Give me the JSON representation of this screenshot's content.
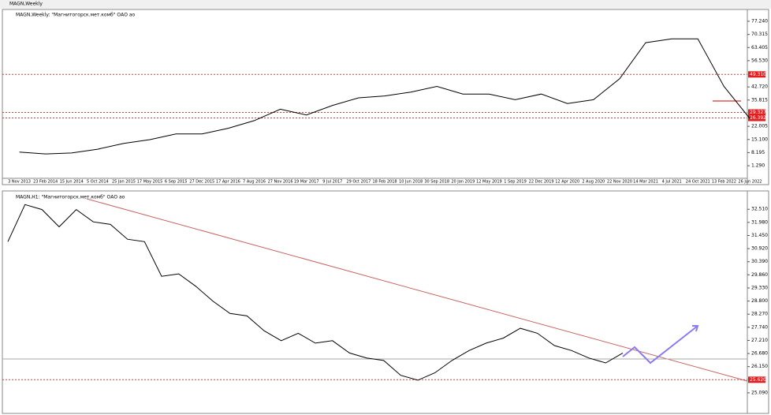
{
  "window": {
    "title": "MAGN,Weekly"
  },
  "chart_data": [
    {
      "type": "line",
      "title": "MAGN,Weekly: \"Магнитогорск.мет.комб\" ОАО ао",
      "color": "#000000",
      "categories": [
        "3 Nov 2013",
        "23 Feb 2014",
        "15 Jun 2014",
        "5 Oct 2014",
        "25 Jan 2015",
        "17 May 2015",
        "6 Sep 2015",
        "27 Dec 2015",
        "17 Apr 2016",
        "7 Aug 2016",
        "27 Nov 2016",
        "19 Mar 2017",
        "9 Jul 2017",
        "29 Oct 2017",
        "18 Feb 2018",
        "10 Jun 2018",
        "30 Sep 2018",
        "20 Jan 2019",
        "12 May 2019",
        "1 Sep 2019",
        "22 Dec 2019",
        "12 Apr 2020",
        "2 Aug 2020",
        "22 Nov 2020",
        "14 Mar 2021",
        "4 Jul 2021",
        "24 Oct 2021",
        "13 Feb 2022",
        "26 Jun 2022"
      ],
      "values": [
        8.5,
        7.5,
        8.0,
        10,
        13,
        15,
        18,
        18,
        21,
        25,
        31,
        28,
        33,
        37,
        38,
        40,
        43,
        39,
        39,
        36,
        39,
        34,
        36,
        47,
        66,
        68,
        68,
        43,
        26
      ],
      "ylim": [
        -4.9,
        82.2
      ],
      "yticks": [
        {
          "value": 77.24,
          "label": "77.240"
        },
        {
          "value": 70.315,
          "label": "70.315"
        },
        {
          "value": 63.405,
          "label": "63.405"
        },
        {
          "value": 56.53,
          "label": "56.530"
        },
        {
          "value": 42.72,
          "label": "42.720"
        },
        {
          "value": 35.815,
          "label": "35.815"
        },
        {
          "value": 22.005,
          "label": "22.005"
        },
        {
          "value": 15.1,
          "label": "15.100"
        },
        {
          "value": 8.195,
          "label": "8.195"
        },
        {
          "value": 1.29,
          "label": "1.290"
        }
      ],
      "levels": [
        {
          "value": 49.31,
          "label": "49.310"
        },
        {
          "value": 29.327,
          "label": "29.327"
        },
        {
          "value": 26.392,
          "label": "26.392"
        }
      ]
    },
    {
      "type": "line",
      "title": "MAGN,H1: \"Магнитогорск.мет.комб\" ОАО ао",
      "color": "#000000",
      "values": [
        31.2,
        32.7,
        32.5,
        31.8,
        32.5,
        32,
        31.9,
        31.3,
        31.2,
        29.8,
        29.9,
        29.4,
        28.8,
        28.3,
        28.2,
        27.6,
        27.2,
        27.5,
        27.1,
        27.2,
        26.7,
        26.5,
        26.4,
        25.8,
        25.6,
        25.9,
        26.4,
        26.8,
        27.1,
        27.3,
        27.7,
        27.5,
        27.0,
        26.8,
        26.5,
        26.3,
        26.7
      ],
      "ylim": [
        24.45,
        33.06
      ],
      "yticks": [
        {
          "value": 32.51,
          "label": "32.510"
        },
        {
          "value": 31.98,
          "label": "31.980"
        },
        {
          "value": 31.45,
          "label": "31.450"
        },
        {
          "value": 30.92,
          "label": "30.920"
        },
        {
          "value": 30.39,
          "label": "30.390"
        },
        {
          "value": 29.86,
          "label": "29.860"
        },
        {
          "value": 29.33,
          "label": "29.330"
        },
        {
          "value": 28.8,
          "label": "28.800"
        },
        {
          "value": 28.27,
          "label": "28.270"
        },
        {
          "value": 27.74,
          "label": "27.740"
        },
        {
          "value": 27.21,
          "label": "27.210"
        },
        {
          "value": 26.68,
          "label": "26.680"
        },
        {
          "value": 26.15,
          "label": "26.150"
        },
        {
          "value": 25.09,
          "label": "25.090"
        }
      ],
      "levels": [
        {
          "value": 25.62,
          "label": "25.620"
        }
      ]
    }
  ]
}
